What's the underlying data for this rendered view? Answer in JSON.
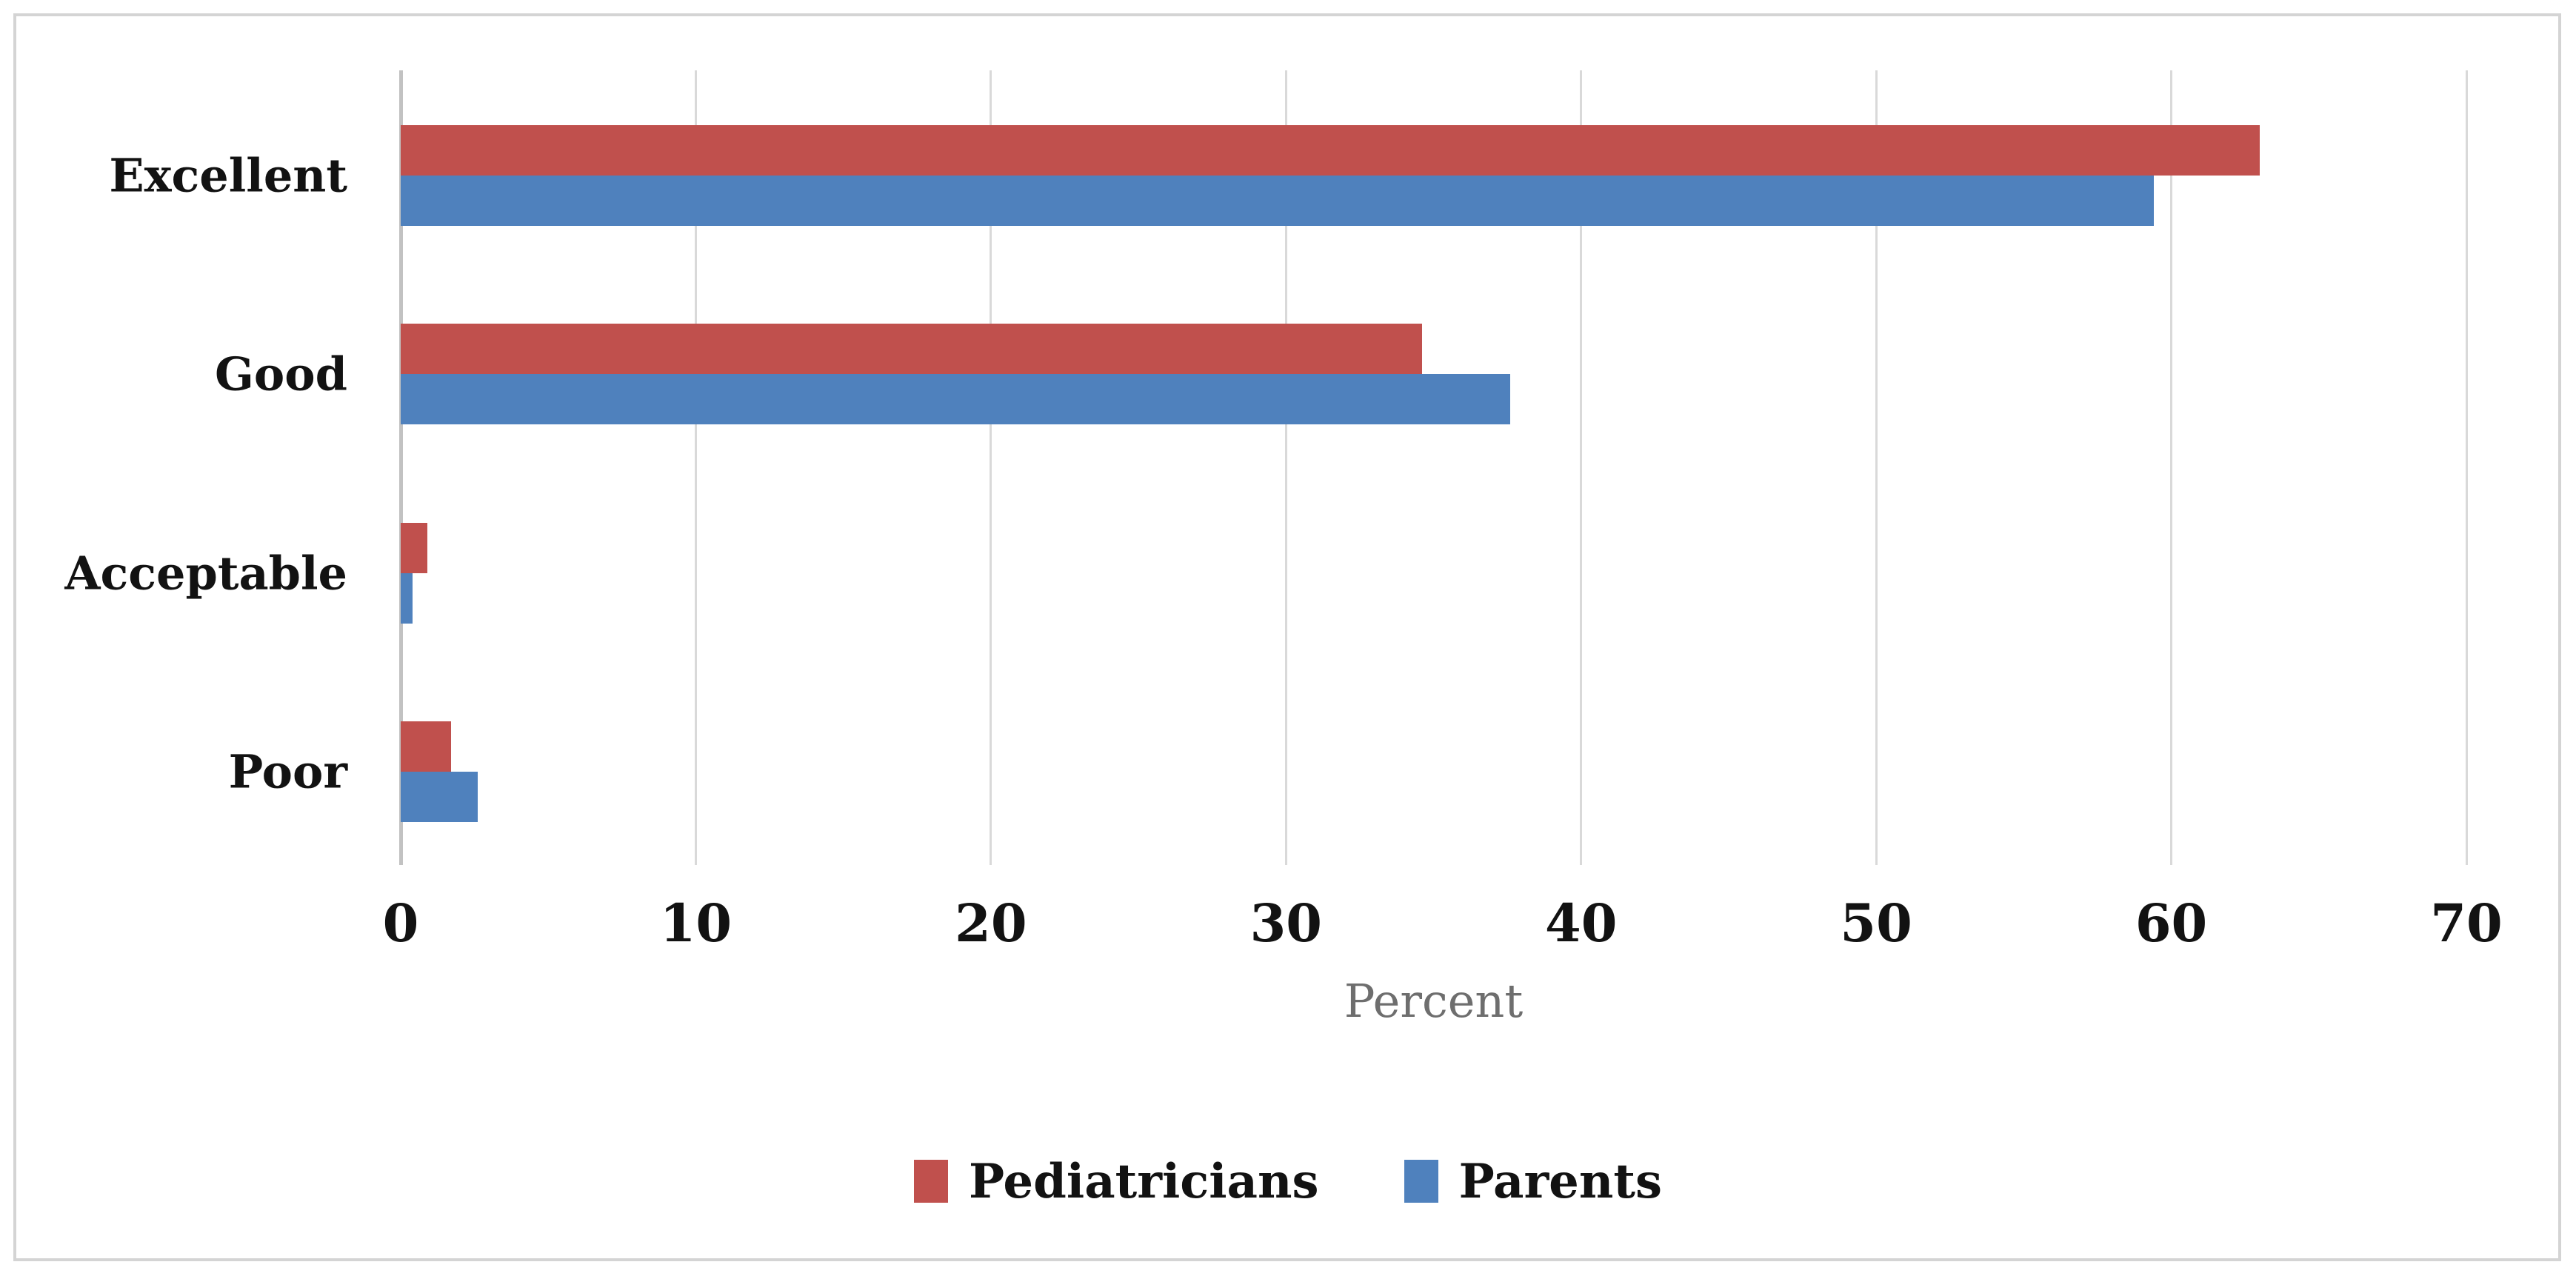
{
  "chart_data": {
    "type": "bar",
    "orientation": "horizontal",
    "title": "",
    "categories": [
      "Excellent",
      "Good",
      "Acceptable",
      "Poor"
    ],
    "series": [
      {
        "name": "Pediatricians",
        "color": "#C0504D",
        "values": [
          63,
          34.6,
          0.9,
          1.7
        ]
      },
      {
        "name": "Parents",
        "color": "#4F81BD",
        "values": [
          59.4,
          37.6,
          0.4,
          2.6
        ]
      }
    ],
    "xlabel": "Percent",
    "ylabel": "",
    "xlim": [
      0,
      70
    ],
    "xticks": [
      0,
      10,
      20,
      30,
      40,
      50,
      60,
      70
    ],
    "grid": true,
    "legend_position": "bottom-center"
  },
  "colors": {
    "background": "#FFFFFF",
    "frame_border": "#D4D4D4",
    "gridline": "#D9D9D9",
    "axis_line": "#C2C2C2",
    "category_text": "#121212",
    "tick_text": "#121212",
    "xlabel_text": "#6E6E6E",
    "legend_text": "#121212",
    "series_red": "#C0504D",
    "series_blue": "#4F81BD"
  }
}
